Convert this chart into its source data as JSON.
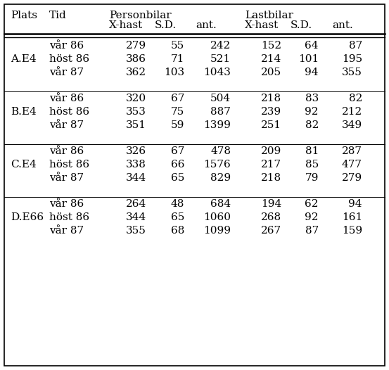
{
  "groups": [
    {
      "plats": "A.E4",
      "rows": [
        [
          "vår 86",
          "279",
          "55",
          "242",
          "152",
          "64",
          "87"
        ],
        [
          "höst 86",
          "386",
          "71",
          "521",
          "214",
          "101",
          "195"
        ],
        [
          "vår 87",
          "362",
          "103",
          "1043",
          "205",
          "94",
          "355"
        ]
      ]
    },
    {
      "plats": "B.E4",
      "rows": [
        [
          "vår 86",
          "320",
          "67",
          "504",
          "218",
          "83",
          "82"
        ],
        [
          "höst 86",
          "353",
          "75",
          "887",
          "239",
          "92",
          "212"
        ],
        [
          "vår 87",
          "351",
          "59",
          "1399",
          "251",
          "82",
          "349"
        ]
      ]
    },
    {
      "plats": "C.E4",
      "rows": [
        [
          "vår 86",
          "326",
          "67",
          "478",
          "209",
          "81",
          "287"
        ],
        [
          "höst 86",
          "338",
          "66",
          "1576",
          "217",
          "85",
          "477"
        ],
        [
          "vår 87",
          "344",
          "65",
          "829",
          "218",
          "79",
          "279"
        ]
      ]
    },
    {
      "plats": "D.E66",
      "rows": [
        [
          "vår 86",
          "264",
          "48",
          "684",
          "194",
          "62",
          "94"
        ],
        [
          "höst 86",
          "344",
          "65",
          "1060",
          "268",
          "92",
          "161"
        ],
        [
          "vår 87",
          "355",
          "68",
          "1099",
          "267",
          "87",
          "159"
        ]
      ]
    }
  ],
  "background_color": "#ffffff",
  "text_color": "#000000",
  "font_size": 11,
  "header_font_size": 11
}
